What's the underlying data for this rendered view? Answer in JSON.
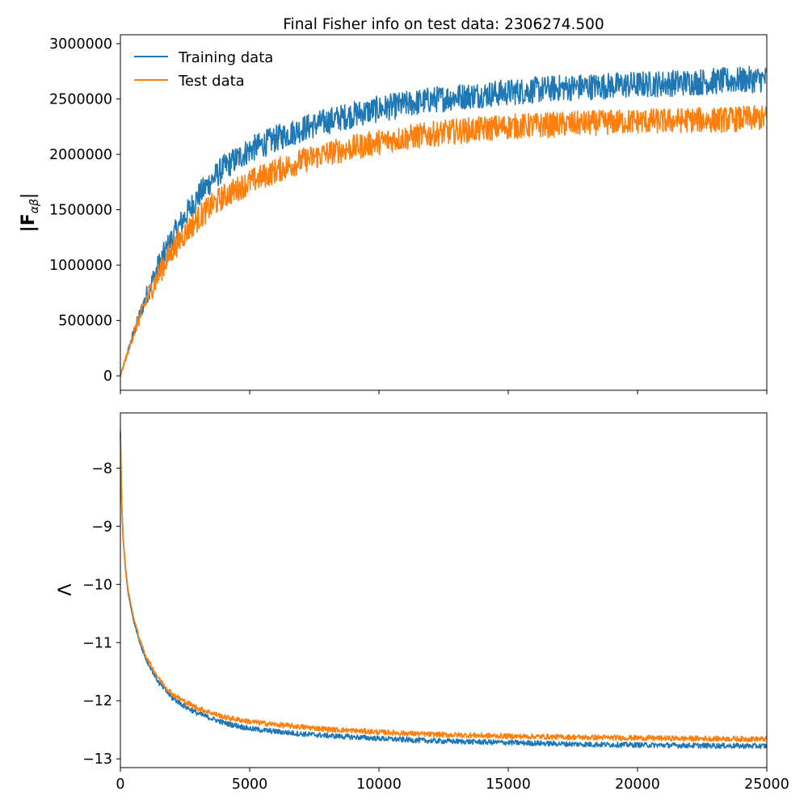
{
  "chart_data": [
    {
      "type": "line",
      "title": "Final Fisher info on test data: 2306274.500",
      "xlabel": "",
      "ylabel": "|F",
      "ylabel_subscript": "αβ",
      "ylabel_suffix": "|",
      "xlim": [
        0,
        25000
      ],
      "ylim": [
        -130000,
        3080000
      ],
      "xticks": [
        0,
        5000,
        10000,
        15000,
        20000,
        25000
      ],
      "xtick_labels_shown": false,
      "yticks": [
        0,
        500000,
        1000000,
        1500000,
        2000000,
        2500000,
        3000000
      ],
      "ytick_labels": [
        "0",
        "500000",
        "1000000",
        "1500000",
        "2000000",
        "2500000",
        "3000000"
      ],
      "grid": false,
      "legend": "top-left",
      "series": [
        {
          "name": "Training data",
          "color": "#1f77b4",
          "x": [
            0,
            500,
            1000,
            1500,
            2000,
            2500,
            3000,
            3500,
            4000,
            5000,
            6000,
            7000,
            8000,
            9000,
            10000,
            11000,
            12000,
            13000,
            14000,
            15000,
            16000,
            17000,
            18000,
            19000,
            20000,
            21000,
            22000,
            23000,
            24000,
            25000
          ],
          "values": [
            0,
            380000,
            720000,
            1000000,
            1240000,
            1440000,
            1620000,
            1760000,
            1880000,
            2040000,
            2140000,
            2230000,
            2300000,
            2360000,
            2410000,
            2450000,
            2490000,
            2520000,
            2540000,
            2560000,
            2580000,
            2600000,
            2610000,
            2620000,
            2630000,
            2640000,
            2650000,
            2660000,
            2670000,
            2680000
          ],
          "noise": 120000
        },
        {
          "name": "Test data",
          "color": "#ff7f0e",
          "x": [
            0,
            500,
            1000,
            1500,
            2000,
            2500,
            3000,
            3500,
            4000,
            5000,
            6000,
            7000,
            8000,
            9000,
            10000,
            11000,
            12000,
            13000,
            14000,
            15000,
            16000,
            17000,
            18000,
            19000,
            20000,
            21000,
            22000,
            23000,
            24000,
            25000
          ],
          "values": [
            0,
            370000,
            680000,
            930000,
            1130000,
            1290000,
            1420000,
            1530000,
            1620000,
            1750000,
            1850000,
            1940000,
            2010000,
            2060000,
            2110000,
            2150000,
            2180000,
            2210000,
            2230000,
            2250000,
            2260000,
            2270000,
            2280000,
            2290000,
            2300000,
            2300000,
            2310000,
            2310000,
            2320000,
            2330000
          ],
          "noise": 115000
        }
      ]
    },
    {
      "type": "line",
      "title": "",
      "xlabel": "",
      "ylabel": "Λ",
      "xlim": [
        0,
        25000
      ],
      "ylim": [
        -13.15,
        -7.05
      ],
      "xticks": [
        0,
        5000,
        10000,
        15000,
        20000,
        25000
      ],
      "xtick_labels": [
        "0",
        "5000",
        "10000",
        "15000",
        "20000",
        "25000"
      ],
      "yticks": [
        -13,
        -12,
        -11,
        -10,
        -9,
        -8
      ],
      "ytick_labels": [
        "−13",
        "−12",
        "−11",
        "−10",
        "−9",
        "−8"
      ],
      "grid": false,
      "series": [
        {
          "name": "Training data",
          "color": "#1f77b4",
          "x": [
            0,
            50,
            100,
            200,
            300,
            500,
            750,
            1000,
            1500,
            2000,
            2500,
            3000,
            4000,
            5000,
            6000,
            7000,
            8000,
            10000,
            12000,
            15000,
            18000,
            20000,
            22000,
            25000
          ],
          "values": [
            -7.4,
            -8.6,
            -9.2,
            -9.75,
            -10.15,
            -10.6,
            -11.0,
            -11.3,
            -11.7,
            -11.95,
            -12.1,
            -12.22,
            -12.38,
            -12.48,
            -12.53,
            -12.57,
            -12.6,
            -12.65,
            -12.69,
            -12.72,
            -12.75,
            -12.76,
            -12.77,
            -12.78
          ],
          "noise": 0.045
        },
        {
          "name": "Test data",
          "color": "#ff7f0e",
          "x": [
            0,
            50,
            100,
            200,
            300,
            500,
            750,
            1000,
            1500,
            2000,
            2500,
            3000,
            4000,
            5000,
            6000,
            7000,
            8000,
            10000,
            12000,
            15000,
            18000,
            20000,
            22000,
            25000
          ],
          "values": [
            -7.35,
            -8.55,
            -9.15,
            -9.7,
            -10.1,
            -10.55,
            -10.95,
            -11.25,
            -11.63,
            -11.88,
            -12.02,
            -12.13,
            -12.28,
            -12.36,
            -12.41,
            -12.45,
            -12.49,
            -12.54,
            -12.58,
            -12.61,
            -12.63,
            -12.64,
            -12.65,
            -12.66
          ],
          "noise": 0.045
        }
      ]
    }
  ]
}
